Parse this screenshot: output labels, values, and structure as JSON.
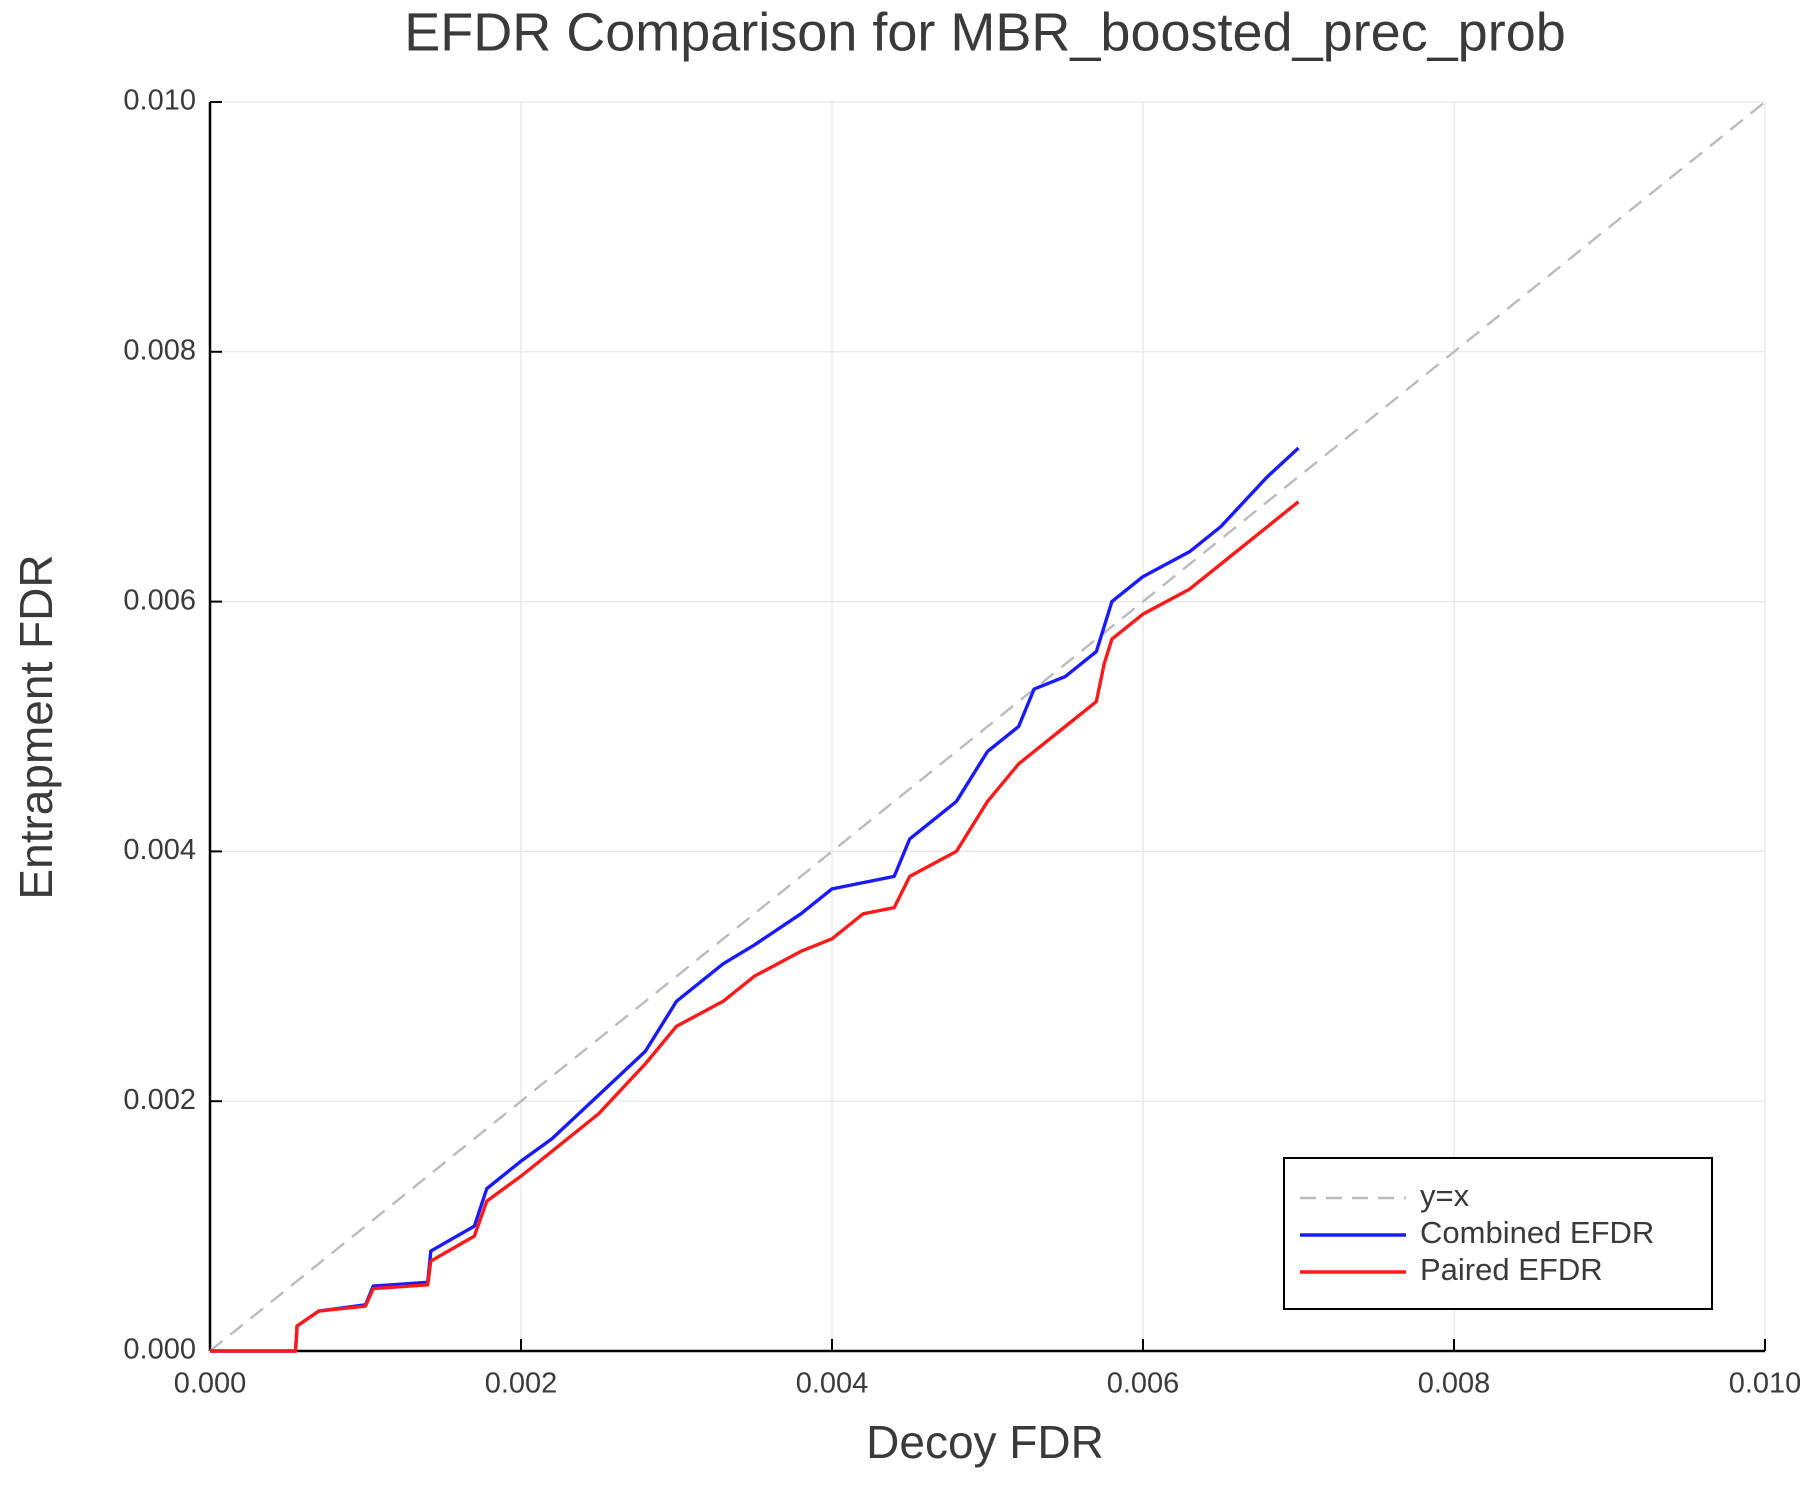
{
  "chart_data": {
    "type": "line",
    "title": "EFDR Comparison for MBR_boosted_prec_prob",
    "xlabel": "Decoy FDR",
    "ylabel": "Entrapment FDR",
    "x": [
      0,
      0.00055,
      0.00056,
      0.0007,
      0.001,
      0.00105,
      0.0014,
      0.00142,
      0.0017,
      0.00178,
      0.002,
      0.0022,
      0.0025,
      0.0028,
      0.003,
      0.0033,
      0.0035,
      0.0038,
      0.004,
      0.0042,
      0.0044,
      0.0045,
      0.0048,
      0.005,
      0.0052,
      0.0053,
      0.0055,
      0.0057,
      0.00575,
      0.0058,
      0.006,
      0.0063,
      0.0065,
      0.0068,
      0.007
    ],
    "series": [
      {
        "name": "y=x",
        "color": "#bbbbbb",
        "dashed": true,
        "x": [
          0,
          0.01
        ],
        "values": [
          0,
          0.01
        ]
      },
      {
        "name": "Combined EFDR",
        "color": "#1a1aff",
        "values": [
          0,
          0,
          0.0002,
          0.00032,
          0.00037,
          0.00052,
          0.00055,
          0.0008,
          0.001,
          0.0013,
          0.00152,
          0.0017,
          0.00205,
          0.0024,
          0.0028,
          0.0031,
          0.00325,
          0.0035,
          0.0037,
          0.00375,
          0.0038,
          0.0041,
          0.0044,
          0.0048,
          0.005,
          0.0053,
          0.0054,
          0.0056,
          0.0058,
          0.006,
          0.0062,
          0.0064,
          0.0066,
          0.007,
          0.00723
        ]
      },
      {
        "name": "Paired EFDR",
        "color": "#ff1a1a",
        "values": [
          0,
          0,
          0.0002,
          0.00032,
          0.00036,
          0.0005,
          0.00053,
          0.00072,
          0.00092,
          0.0012,
          0.0014,
          0.0016,
          0.0019,
          0.0023,
          0.0026,
          0.0028,
          0.003,
          0.0032,
          0.0033,
          0.0035,
          0.00355,
          0.0038,
          0.004,
          0.0044,
          0.0047,
          0.0048,
          0.005,
          0.0052,
          0.0055,
          0.0057,
          0.0059,
          0.0061,
          0.0063,
          0.0066,
          0.0068
        ]
      }
    ],
    "xlim": [
      0,
      0.01
    ],
    "ylim": [
      0,
      0.01
    ],
    "xticks": [
      {
        "value": 0,
        "label": "0.000"
      },
      {
        "value": 0.002,
        "label": "0.002"
      },
      {
        "value": 0.004,
        "label": "0.004"
      },
      {
        "value": 0.006,
        "label": "0.006"
      },
      {
        "value": 0.008,
        "label": "0.008"
      },
      {
        "value": 0.01,
        "label": "0.010"
      }
    ],
    "yticks": [
      {
        "value": 0,
        "label": "0.000"
      },
      {
        "value": 0.002,
        "label": "0.002"
      },
      {
        "value": 0.004,
        "label": "0.004"
      },
      {
        "value": 0.006,
        "label": "0.006"
      },
      {
        "value": 0.008,
        "label": "0.008"
      },
      {
        "value": 0.01,
        "label": "0.010"
      }
    ],
    "grid": true,
    "legend": "lower right"
  }
}
